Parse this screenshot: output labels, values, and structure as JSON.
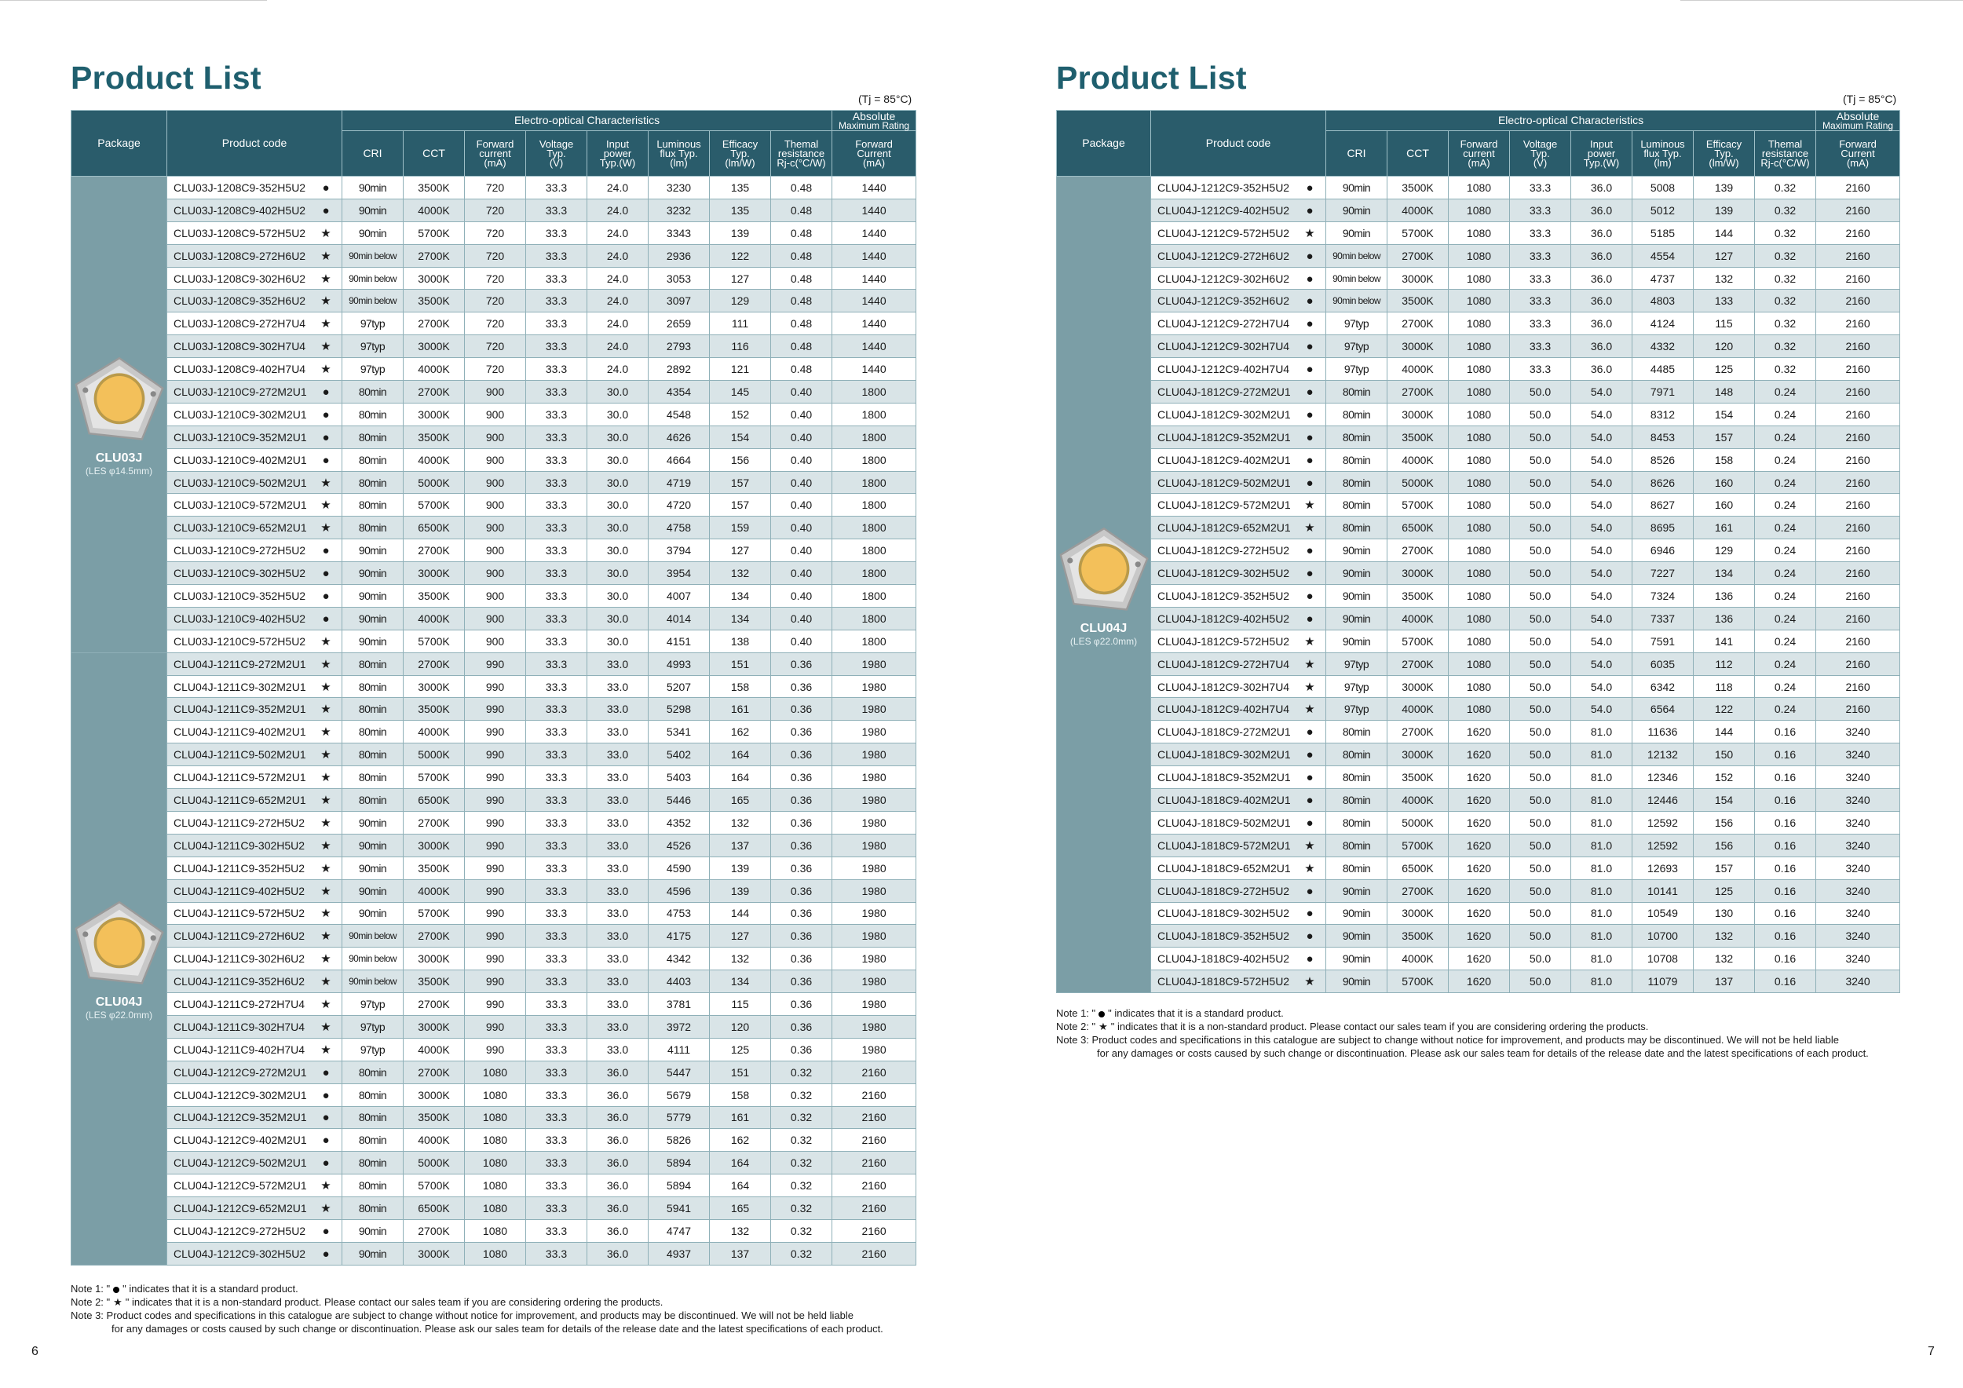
{
  "left_page": {
    "title": "Product List",
    "tj_note": "(Tj = 85°C)",
    "page_number": "6",
    "packages": [
      {
        "name": "CLU03J",
        "les": "(LES φ14.5mm)"
      },
      {
        "name": "CLU04J",
        "les": "(LES φ22.0mm)"
      }
    ],
    "rows": [
      [
        "CLU03J-1208C9-352H5U2",
        "●",
        "90min",
        "3500K",
        "720",
        "33.3",
        "24.0",
        "3230",
        "135",
        "0.48",
        "1440"
      ],
      [
        "CLU03J-1208C9-402H5U2",
        "●",
        "90min",
        "4000K",
        "720",
        "33.3",
        "24.0",
        "3232",
        "135",
        "0.48",
        "1440"
      ],
      [
        "CLU03J-1208C9-572H5U2",
        "★",
        "90min",
        "5700K",
        "720",
        "33.3",
        "24.0",
        "3343",
        "139",
        "0.48",
        "1440"
      ],
      [
        "CLU03J-1208C9-272H6U2",
        "★",
        "90min below",
        "2700K",
        "720",
        "33.3",
        "24.0",
        "2936",
        "122",
        "0.48",
        "1440"
      ],
      [
        "CLU03J-1208C9-302H6U2",
        "★",
        "90min below",
        "3000K",
        "720",
        "33.3",
        "24.0",
        "3053",
        "127",
        "0.48",
        "1440"
      ],
      [
        "CLU03J-1208C9-352H6U2",
        "★",
        "90min below",
        "3500K",
        "720",
        "33.3",
        "24.0",
        "3097",
        "129",
        "0.48",
        "1440"
      ],
      [
        "CLU03J-1208C9-272H7U4",
        "★",
        "97typ",
        "2700K",
        "720",
        "33.3",
        "24.0",
        "2659",
        "111",
        "0.48",
        "1440"
      ],
      [
        "CLU03J-1208C9-302H7U4",
        "★",
        "97typ",
        "3000K",
        "720",
        "33.3",
        "24.0",
        "2793",
        "116",
        "0.48",
        "1440"
      ],
      [
        "CLU03J-1208C9-402H7U4",
        "★",
        "97typ",
        "4000K",
        "720",
        "33.3",
        "24.0",
        "2892",
        "121",
        "0.48",
        "1440"
      ],
      [
        "CLU03J-1210C9-272M2U1",
        "●",
        "80min",
        "2700K",
        "900",
        "33.3",
        "30.0",
        "4354",
        "145",
        "0.40",
        "1800"
      ],
      [
        "CLU03J-1210C9-302M2U1",
        "●",
        "80min",
        "3000K",
        "900",
        "33.3",
        "30.0",
        "4548",
        "152",
        "0.40",
        "1800"
      ],
      [
        "CLU03J-1210C9-352M2U1",
        "●",
        "80min",
        "3500K",
        "900",
        "33.3",
        "30.0",
        "4626",
        "154",
        "0.40",
        "1800"
      ],
      [
        "CLU03J-1210C9-402M2U1",
        "●",
        "80min",
        "4000K",
        "900",
        "33.3",
        "30.0",
        "4664",
        "156",
        "0.40",
        "1800"
      ],
      [
        "CLU03J-1210C9-502M2U1",
        "★",
        "80min",
        "5000K",
        "900",
        "33.3",
        "30.0",
        "4719",
        "157",
        "0.40",
        "1800"
      ],
      [
        "CLU03J-1210C9-572M2U1",
        "★",
        "80min",
        "5700K",
        "900",
        "33.3",
        "30.0",
        "4720",
        "157",
        "0.40",
        "1800"
      ],
      [
        "CLU03J-1210C9-652M2U1",
        "★",
        "80min",
        "6500K",
        "900",
        "33.3",
        "30.0",
        "4758",
        "159",
        "0.40",
        "1800"
      ],
      [
        "CLU03J-1210C9-272H5U2",
        "●",
        "90min",
        "2700K",
        "900",
        "33.3",
        "30.0",
        "3794",
        "127",
        "0.40",
        "1800"
      ],
      [
        "CLU03J-1210C9-302H5U2",
        "●",
        "90min",
        "3000K",
        "900",
        "33.3",
        "30.0",
        "3954",
        "132",
        "0.40",
        "1800"
      ],
      [
        "CLU03J-1210C9-352H5U2",
        "●",
        "90min",
        "3500K",
        "900",
        "33.3",
        "30.0",
        "4007",
        "134",
        "0.40",
        "1800"
      ],
      [
        "CLU03J-1210C9-402H5U2",
        "●",
        "90min",
        "4000K",
        "900",
        "33.3",
        "30.0",
        "4014",
        "134",
        "0.40",
        "1800"
      ],
      [
        "CLU03J-1210C9-572H5U2",
        "★",
        "90min",
        "5700K",
        "900",
        "33.3",
        "30.0",
        "4151",
        "138",
        "0.40",
        "1800"
      ],
      [
        "CLU04J-1211C9-272M2U1",
        "★",
        "80min",
        "2700K",
        "990",
        "33.3",
        "33.0",
        "4993",
        "151",
        "0.36",
        "1980"
      ],
      [
        "CLU04J-1211C9-302M2U1",
        "★",
        "80min",
        "3000K",
        "990",
        "33.3",
        "33.0",
        "5207",
        "158",
        "0.36",
        "1980"
      ],
      [
        "CLU04J-1211C9-352M2U1",
        "★",
        "80min",
        "3500K",
        "990",
        "33.3",
        "33.0",
        "5298",
        "161",
        "0.36",
        "1980"
      ],
      [
        "CLU04J-1211C9-402M2U1",
        "★",
        "80min",
        "4000K",
        "990",
        "33.3",
        "33.0",
        "5341",
        "162",
        "0.36",
        "1980"
      ],
      [
        "CLU04J-1211C9-502M2U1",
        "★",
        "80min",
        "5000K",
        "990",
        "33.3",
        "33.0",
        "5402",
        "164",
        "0.36",
        "1980"
      ],
      [
        "CLU04J-1211C9-572M2U1",
        "★",
        "80min",
        "5700K",
        "990",
        "33.3",
        "33.0",
        "5403",
        "164",
        "0.36",
        "1980"
      ],
      [
        "CLU04J-1211C9-652M2U1",
        "★",
        "80min",
        "6500K",
        "990",
        "33.3",
        "33.0",
        "5446",
        "165",
        "0.36",
        "1980"
      ],
      [
        "CLU04J-1211C9-272H5U2",
        "★",
        "90min",
        "2700K",
        "990",
        "33.3",
        "33.0",
        "4352",
        "132",
        "0.36",
        "1980"
      ],
      [
        "CLU04J-1211C9-302H5U2",
        "★",
        "90min",
        "3000K",
        "990",
        "33.3",
        "33.0",
        "4526",
        "137",
        "0.36",
        "1980"
      ],
      [
        "CLU04J-1211C9-352H5U2",
        "★",
        "90min",
        "3500K",
        "990",
        "33.3",
        "33.0",
        "4590",
        "139",
        "0.36",
        "1980"
      ],
      [
        "CLU04J-1211C9-402H5U2",
        "★",
        "90min",
        "4000K",
        "990",
        "33.3",
        "33.0",
        "4596",
        "139",
        "0.36",
        "1980"
      ],
      [
        "CLU04J-1211C9-572H5U2",
        "★",
        "90min",
        "5700K",
        "990",
        "33.3",
        "33.0",
        "4753",
        "144",
        "0.36",
        "1980"
      ],
      [
        "CLU04J-1211C9-272H6U2",
        "★",
        "90min below",
        "2700K",
        "990",
        "33.3",
        "33.0",
        "4175",
        "127",
        "0.36",
        "1980"
      ],
      [
        "CLU04J-1211C9-302H6U2",
        "★",
        "90min below",
        "3000K",
        "990",
        "33.3",
        "33.0",
        "4342",
        "132",
        "0.36",
        "1980"
      ],
      [
        "CLU04J-1211C9-352H6U2",
        "★",
        "90min below",
        "3500K",
        "990",
        "33.3",
        "33.0",
        "4403",
        "134",
        "0.36",
        "1980"
      ],
      [
        "CLU04J-1211C9-272H7U4",
        "★",
        "97typ",
        "2700K",
        "990",
        "33.3",
        "33.0",
        "3781",
        "115",
        "0.36",
        "1980"
      ],
      [
        "CLU04J-1211C9-302H7U4",
        "★",
        "97typ",
        "3000K",
        "990",
        "33.3",
        "33.0",
        "3972",
        "120",
        "0.36",
        "1980"
      ],
      [
        "CLU04J-1211C9-402H7U4",
        "★",
        "97typ",
        "4000K",
        "990",
        "33.3",
        "33.0",
        "4111",
        "125",
        "0.36",
        "1980"
      ],
      [
        "CLU04J-1212C9-272M2U1",
        "●",
        "80min",
        "2700K",
        "1080",
        "33.3",
        "36.0",
        "5447",
        "151",
        "0.32",
        "2160"
      ],
      [
        "CLU04J-1212C9-302M2U1",
        "●",
        "80min",
        "3000K",
        "1080",
        "33.3",
        "36.0",
        "5679",
        "158",
        "0.32",
        "2160"
      ],
      [
        "CLU04J-1212C9-352M2U1",
        "●",
        "80min",
        "3500K",
        "1080",
        "33.3",
        "36.0",
        "5779",
        "161",
        "0.32",
        "2160"
      ],
      [
        "CLU04J-1212C9-402M2U1",
        "●",
        "80min",
        "4000K",
        "1080",
        "33.3",
        "36.0",
        "5826",
        "162",
        "0.32",
        "2160"
      ],
      [
        "CLU04J-1212C9-502M2U1",
        "●",
        "80min",
        "5000K",
        "1080",
        "33.3",
        "36.0",
        "5894",
        "164",
        "0.32",
        "2160"
      ],
      [
        "CLU04J-1212C9-572M2U1",
        "★",
        "80min",
        "5700K",
        "1080",
        "33.3",
        "36.0",
        "5894",
        "164",
        "0.32",
        "2160"
      ],
      [
        "CLU04J-1212C9-652M2U1",
        "★",
        "80min",
        "6500K",
        "1080",
        "33.3",
        "36.0",
        "5941",
        "165",
        "0.32",
        "2160"
      ],
      [
        "CLU04J-1212C9-272H5U2",
        "●",
        "90min",
        "2700K",
        "1080",
        "33.3",
        "36.0",
        "4747",
        "132",
        "0.32",
        "2160"
      ],
      [
        "CLU04J-1212C9-302H5U2",
        "●",
        "90min",
        "3000K",
        "1080",
        "33.3",
        "36.0",
        "4937",
        "137",
        "0.32",
        "2160"
      ]
    ]
  },
  "right_page": {
    "title": "Product List",
    "tj_note": "(Tj = 85°C)",
    "page_number": "7",
    "packages": [
      {
        "name": "CLU04J",
        "les": "(LES φ22.0mm)"
      }
    ],
    "rows": [
      [
        "CLU04J-1212C9-352H5U2",
        "●",
        "90min",
        "3500K",
        "1080",
        "33.3",
        "36.0",
        "5008",
        "139",
        "0.32",
        "2160"
      ],
      [
        "CLU04J-1212C9-402H5U2",
        "●",
        "90min",
        "4000K",
        "1080",
        "33.3",
        "36.0",
        "5012",
        "139",
        "0.32",
        "2160"
      ],
      [
        "CLU04J-1212C9-572H5U2",
        "★",
        "90min",
        "5700K",
        "1080",
        "33.3",
        "36.0",
        "5185",
        "144",
        "0.32",
        "2160"
      ],
      [
        "CLU04J-1212C9-272H6U2",
        "●",
        "90min below",
        "2700K",
        "1080",
        "33.3",
        "36.0",
        "4554",
        "127",
        "0.32",
        "2160"
      ],
      [
        "CLU04J-1212C9-302H6U2",
        "●",
        "90min below",
        "3000K",
        "1080",
        "33.3",
        "36.0",
        "4737",
        "132",
        "0.32",
        "2160"
      ],
      [
        "CLU04J-1212C9-352H6U2",
        "●",
        "90min below",
        "3500K",
        "1080",
        "33.3",
        "36.0",
        "4803",
        "133",
        "0.32",
        "2160"
      ],
      [
        "CLU04J-1212C9-272H7U4",
        "●",
        "97typ",
        "2700K",
        "1080",
        "33.3",
        "36.0",
        "4124",
        "115",
        "0.32",
        "2160"
      ],
      [
        "CLU04J-1212C9-302H7U4",
        "●",
        "97typ",
        "3000K",
        "1080",
        "33.3",
        "36.0",
        "4332",
        "120",
        "0.32",
        "2160"
      ],
      [
        "CLU04J-1212C9-402H7U4",
        "●",
        "97typ",
        "4000K",
        "1080",
        "33.3",
        "36.0",
        "4485",
        "125",
        "0.32",
        "2160"
      ],
      [
        "CLU04J-1812C9-272M2U1",
        "●",
        "80min",
        "2700K",
        "1080",
        "50.0",
        "54.0",
        "7971",
        "148",
        "0.24",
        "2160"
      ],
      [
        "CLU04J-1812C9-302M2U1",
        "●",
        "80min",
        "3000K",
        "1080",
        "50.0",
        "54.0",
        "8312",
        "154",
        "0.24",
        "2160"
      ],
      [
        "CLU04J-1812C9-352M2U1",
        "●",
        "80min",
        "3500K",
        "1080",
        "50.0",
        "54.0",
        "8453",
        "157",
        "0.24",
        "2160"
      ],
      [
        "CLU04J-1812C9-402M2U1",
        "●",
        "80min",
        "4000K",
        "1080",
        "50.0",
        "54.0",
        "8526",
        "158",
        "0.24",
        "2160"
      ],
      [
        "CLU04J-1812C9-502M2U1",
        "●",
        "80min",
        "5000K",
        "1080",
        "50.0",
        "54.0",
        "8626",
        "160",
        "0.24",
        "2160"
      ],
      [
        "CLU04J-1812C9-572M2U1",
        "★",
        "80min",
        "5700K",
        "1080",
        "50.0",
        "54.0",
        "8627",
        "160",
        "0.24",
        "2160"
      ],
      [
        "CLU04J-1812C9-652M2U1",
        "★",
        "80min",
        "6500K",
        "1080",
        "50.0",
        "54.0",
        "8695",
        "161",
        "0.24",
        "2160"
      ],
      [
        "CLU04J-1812C9-272H5U2",
        "●",
        "90min",
        "2700K",
        "1080",
        "50.0",
        "54.0",
        "6946",
        "129",
        "0.24",
        "2160"
      ],
      [
        "CLU04J-1812C9-302H5U2",
        "●",
        "90min",
        "3000K",
        "1080",
        "50.0",
        "54.0",
        "7227",
        "134",
        "0.24",
        "2160"
      ],
      [
        "CLU04J-1812C9-352H5U2",
        "●",
        "90min",
        "3500K",
        "1080",
        "50.0",
        "54.0",
        "7324",
        "136",
        "0.24",
        "2160"
      ],
      [
        "CLU04J-1812C9-402H5U2",
        "●",
        "90min",
        "4000K",
        "1080",
        "50.0",
        "54.0",
        "7337",
        "136",
        "0.24",
        "2160"
      ],
      [
        "CLU04J-1812C9-572H5U2",
        "★",
        "90min",
        "5700K",
        "1080",
        "50.0",
        "54.0",
        "7591",
        "141",
        "0.24",
        "2160"
      ],
      [
        "CLU04J-1812C9-272H7U4",
        "★",
        "97typ",
        "2700K",
        "1080",
        "50.0",
        "54.0",
        "6035",
        "112",
        "0.24",
        "2160"
      ],
      [
        "CLU04J-1812C9-302H7U4",
        "★",
        "97typ",
        "3000K",
        "1080",
        "50.0",
        "54.0",
        "6342",
        "118",
        "0.24",
        "2160"
      ],
      [
        "CLU04J-1812C9-402H7U4",
        "★",
        "97typ",
        "4000K",
        "1080",
        "50.0",
        "54.0",
        "6564",
        "122",
        "0.24",
        "2160"
      ],
      [
        "CLU04J-1818C9-272M2U1",
        "●",
        "80min",
        "2700K",
        "1620",
        "50.0",
        "81.0",
        "11636",
        "144",
        "0.16",
        "3240"
      ],
      [
        "CLU04J-1818C9-302M2U1",
        "●",
        "80min",
        "3000K",
        "1620",
        "50.0",
        "81.0",
        "12132",
        "150",
        "0.16",
        "3240"
      ],
      [
        "CLU04J-1818C9-352M2U1",
        "●",
        "80min",
        "3500K",
        "1620",
        "50.0",
        "81.0",
        "12346",
        "152",
        "0.16",
        "3240"
      ],
      [
        "CLU04J-1818C9-402M2U1",
        "●",
        "80min",
        "4000K",
        "1620",
        "50.0",
        "81.0",
        "12446",
        "154",
        "0.16",
        "3240"
      ],
      [
        "CLU04J-1818C9-502M2U1",
        "●",
        "80min",
        "5000K",
        "1620",
        "50.0",
        "81.0",
        "12592",
        "156",
        "0.16",
        "3240"
      ],
      [
        "CLU04J-1818C9-572M2U1",
        "★",
        "80min",
        "5700K",
        "1620",
        "50.0",
        "81.0",
        "12592",
        "156",
        "0.16",
        "3240"
      ],
      [
        "CLU04J-1818C9-652M2U1",
        "★",
        "80min",
        "6500K",
        "1620",
        "50.0",
        "81.0",
        "12693",
        "157",
        "0.16",
        "3240"
      ],
      [
        "CLU04J-1818C9-272H5U2",
        "●",
        "90min",
        "2700K",
        "1620",
        "50.0",
        "81.0",
        "10141",
        "125",
        "0.16",
        "3240"
      ],
      [
        "CLU04J-1818C9-302H5U2",
        "●",
        "90min",
        "3000K",
        "1620",
        "50.0",
        "81.0",
        "10549",
        "130",
        "0.16",
        "3240"
      ],
      [
        "CLU04J-1818C9-352H5U2",
        "●",
        "90min",
        "3500K",
        "1620",
        "50.0",
        "81.0",
        "10700",
        "132",
        "0.16",
        "3240"
      ],
      [
        "CLU04J-1818C9-402H5U2",
        "●",
        "90min",
        "4000K",
        "1620",
        "50.0",
        "81.0",
        "10708",
        "132",
        "0.16",
        "3240"
      ],
      [
        "CLU04J-1818C9-572H5U2",
        "★",
        "90min",
        "5700K",
        "1620",
        "50.0",
        "81.0",
        "11079",
        "137",
        "0.16",
        "3240"
      ]
    ]
  },
  "headers": {
    "package": "Package",
    "product_code": "Product code",
    "eo_group": "Electro-optical Characteristics",
    "abs_group_1": "Absolute",
    "abs_group_2": "Maximum Rating",
    "cri": "CRI",
    "cct": "CCT",
    "forward_current": [
      "Forward",
      "current",
      "(mA)"
    ],
    "voltage": [
      "Voltage",
      "Typ.",
      "(V)"
    ],
    "input_power": [
      "Input",
      "power",
      "Typ.(W)"
    ],
    "luminous_flux": [
      "Luminous",
      "flux Typ.",
      "(lm)"
    ],
    "efficacy": [
      "Efficacy",
      "Typ.",
      "(lm/W)"
    ],
    "thermal": [
      "Themal",
      "resistance",
      "Rj-c(°C/W)"
    ],
    "abs_forward": [
      "Forward",
      "Current",
      "(mA)"
    ]
  },
  "notes": {
    "note1_prefix": "Note 1: \"",
    "note1_suffix": "\" indicates that it is a standard product.",
    "note2_prefix": "Note 2: \"",
    "note2_symbol": "★",
    "note2_suffix": "\" indicates that it is a non-standard product. Please contact our sales team if you are considering ordering the products.",
    "note3_a": "Note 3: Product codes and specifications in this catalogue are subject to change without notice for improvement, and products may be discontinued. We will not be held liable",
    "note3_b": "for any damages or costs caused by such change or discontinuation. Please ask our sales team for details of the release date and the latest specifications of each product."
  },
  "colors": {
    "title": "#1f5f6e",
    "header_bg": "#2a5c6b",
    "package_bg": "#7b9ea6",
    "row_alt": "#d9e4e7",
    "chip_yellow": "#f3c05a"
  }
}
